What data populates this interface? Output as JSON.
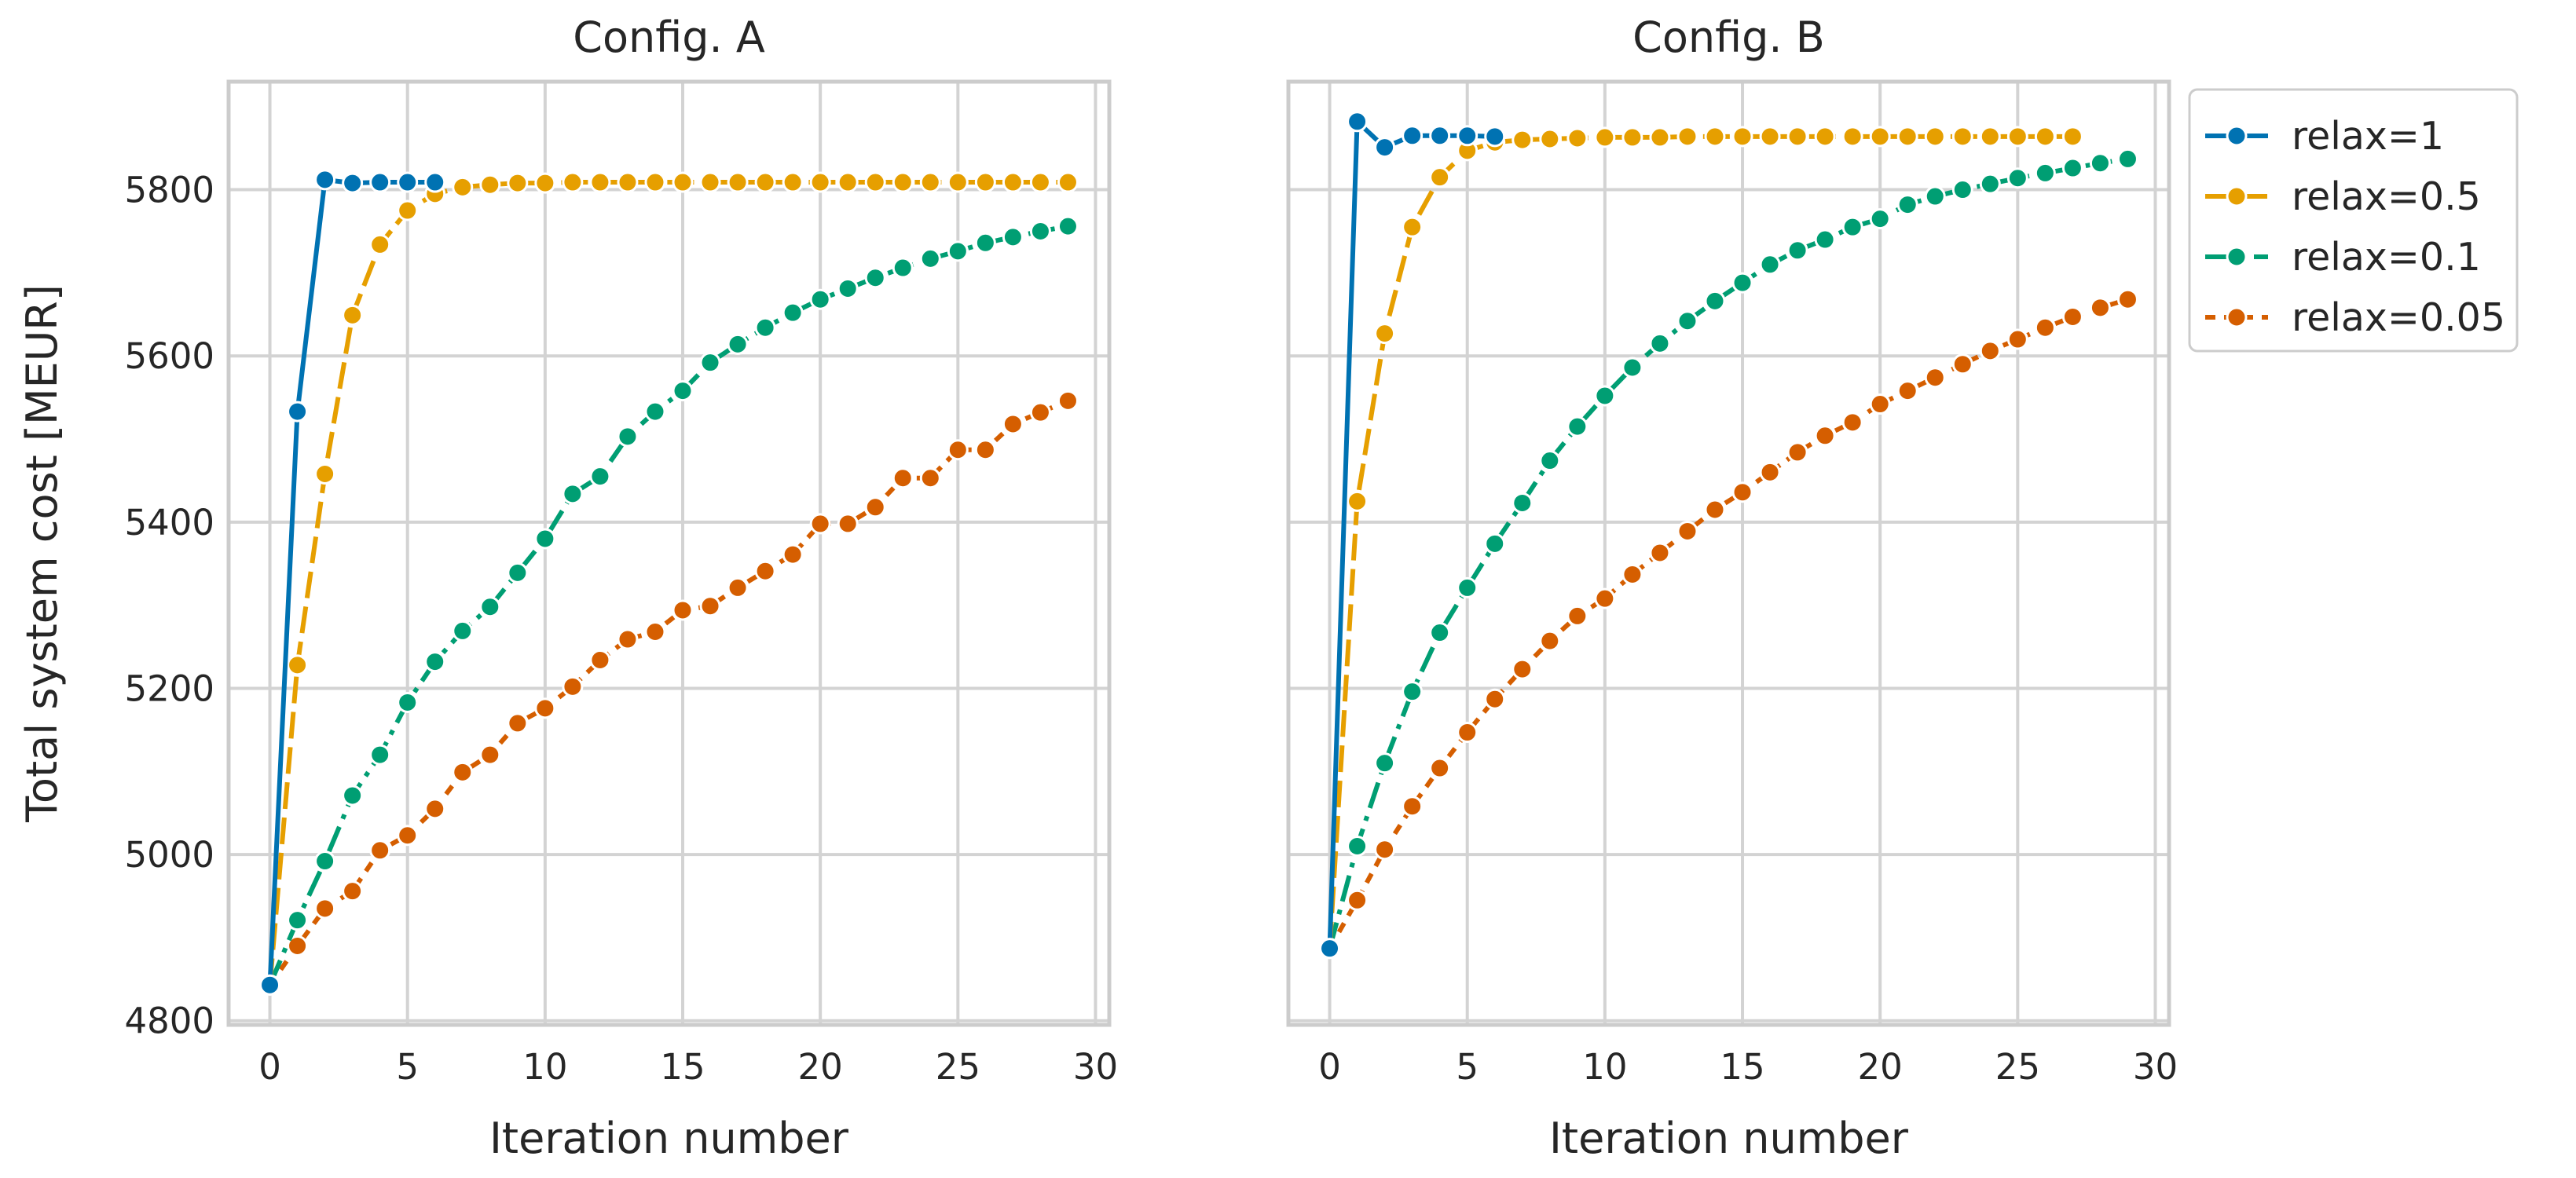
{
  "colors": {
    "relax=1": "#0072b2",
    "relax=0.5": "#e69f00",
    "relax=0.1": "#009e73",
    "relax=0.05": "#d55e00",
    "grid": "#d3d3d3",
    "frame": "#cccccc"
  },
  "chart_data": [
    {
      "type": "line",
      "title": "Config. A",
      "xlabel": "Iteration number",
      "ylabel": "Total system cost [MEUR]",
      "xlim": [
        -1.5,
        30.5
      ],
      "ylim": [
        4795,
        5930
      ],
      "xticks": [
        0,
        5,
        10,
        15,
        20,
        25,
        30
      ],
      "yticks": [
        4800,
        5000,
        5200,
        5400,
        5600,
        5800
      ],
      "grid": true,
      "series": [
        {
          "name": "relax=1",
          "x": [
            0,
            1,
            2,
            3,
            4,
            5,
            6
          ],
          "values": [
            4843,
            5533,
            5812,
            5808,
            5809,
            5809,
            5809
          ]
        },
        {
          "name": "relax=0.5",
          "x": [
            0,
            1,
            2,
            3,
            4,
            5,
            6,
            7,
            8,
            9,
            10,
            11,
            12,
            13,
            14,
            15,
            16,
            17,
            18,
            19,
            20,
            21,
            22,
            23,
            24,
            25,
            26,
            27,
            28,
            29
          ],
          "values": [
            4843,
            5228,
            5458,
            5649,
            5734,
            5775,
            5795,
            5803,
            5806,
            5808,
            5808,
            5809,
            5809,
            5809,
            5809,
            5809,
            5809,
            5809,
            5809,
            5809,
            5809,
            5809,
            5809,
            5809,
            5809,
            5809,
            5809,
            5809,
            5809,
            5809
          ]
        },
        {
          "name": "relax=0.1",
          "x": [
            0,
            1,
            2,
            3,
            4,
            5,
            6,
            7,
            8,
            9,
            10,
            11,
            12,
            13,
            14,
            15,
            16,
            17,
            18,
            19,
            20,
            21,
            22,
            23,
            24,
            25,
            26,
            27,
            28,
            29
          ],
          "values": [
            4843,
            4921,
            4992,
            5071,
            5120,
            5183,
            5232,
            5269,
            5298,
            5339,
            5380,
            5434,
            5455,
            5503,
            5533,
            5558,
            5592,
            5614,
            5634,
            5652,
            5668,
            5681,
            5694,
            5706,
            5717,
            5726,
            5736,
            5743,
            5750,
            5756
          ]
        },
        {
          "name": "relax=0.05",
          "x": [
            0,
            1,
            2,
            3,
            4,
            5,
            6,
            7,
            8,
            9,
            10,
            11,
            12,
            13,
            14,
            15,
            16,
            17,
            18,
            19,
            20,
            21,
            22,
            23,
            24,
            25,
            26,
            27,
            28,
            29
          ],
          "values": [
            4843,
            4890,
            4935,
            4956,
            5005,
            5023,
            5055,
            5099,
            5120,
            5158,
            5176,
            5202,
            5234,
            5259,
            5268,
            5294,
            5299,
            5321,
            5341,
            5361,
            5398,
            5398,
            5418,
            5453,
            5453,
            5487,
            5487,
            5518,
            5532,
            5546
          ]
        }
      ]
    },
    {
      "type": "line",
      "title": "Config. B",
      "xlabel": "Iteration number",
      "ylabel": "",
      "xlim": [
        -1.5,
        30.5
      ],
      "ylim": [
        4795,
        5930
      ],
      "xticks": [
        0,
        5,
        10,
        15,
        20,
        25,
        30
      ],
      "yticks": [
        4800,
        5000,
        5200,
        5400,
        5600,
        5800
      ],
      "grid": true,
      "series": [
        {
          "name": "relax=1",
          "x": [
            0,
            1,
            2,
            3,
            4,
            5,
            6
          ],
          "values": [
            4887,
            5882,
            5851,
            5865,
            5865,
            5865,
            5864
          ]
        },
        {
          "name": "relax=0.5",
          "x": [
            0,
            1,
            2,
            3,
            4,
            5,
            6,
            7,
            8,
            9,
            10,
            11,
            12,
            13,
            14,
            15,
            16,
            17,
            18,
            19,
            20,
            21,
            22,
            23,
            24,
            25,
            26,
            27
          ],
          "values": [
            4887,
            5425,
            5627,
            5755,
            5815,
            5847,
            5857,
            5860,
            5861,
            5862,
            5863,
            5863,
            5863,
            5864,
            5864,
            5864,
            5864,
            5864,
            5864,
            5864,
            5864,
            5864,
            5864,
            5864,
            5864,
            5864,
            5864,
            5864
          ]
        },
        {
          "name": "relax=0.1",
          "x": [
            0,
            1,
            2,
            3,
            4,
            5,
            6,
            7,
            8,
            9,
            10,
            11,
            12,
            13,
            14,
            15,
            16,
            17,
            18,
            19,
            20,
            21,
            22,
            23,
            24,
            25,
            26,
            27,
            28,
            29
          ],
          "values": [
            4887,
            5010,
            5110,
            5196,
            5267,
            5321,
            5374,
            5423,
            5474,
            5515,
            5552,
            5586,
            5615,
            5642,
            5666,
            5688,
            5710,
            5727,
            5740,
            5755,
            5765,
            5782,
            5792,
            5800,
            5807,
            5814,
            5820,
            5826,
            5832,
            5837
          ]
        },
        {
          "name": "relax=0.05",
          "x": [
            0,
            1,
            2,
            3,
            4,
            5,
            6,
            7,
            8,
            9,
            10,
            11,
            12,
            13,
            14,
            15,
            16,
            17,
            18,
            19,
            20,
            21,
            22,
            23,
            24,
            25,
            26,
            27,
            28,
            29
          ],
          "values": [
            4887,
            4945,
            5006,
            5058,
            5104,
            5147,
            5187,
            5223,
            5257,
            5287,
            5308,
            5337,
            5363,
            5389,
            5415,
            5436,
            5460,
            5484,
            5504,
            5520,
            5542,
            5558,
            5574,
            5590,
            5606,
            5620,
            5634,
            5647,
            5658,
            5668
          ]
        }
      ]
    }
  ]
}
